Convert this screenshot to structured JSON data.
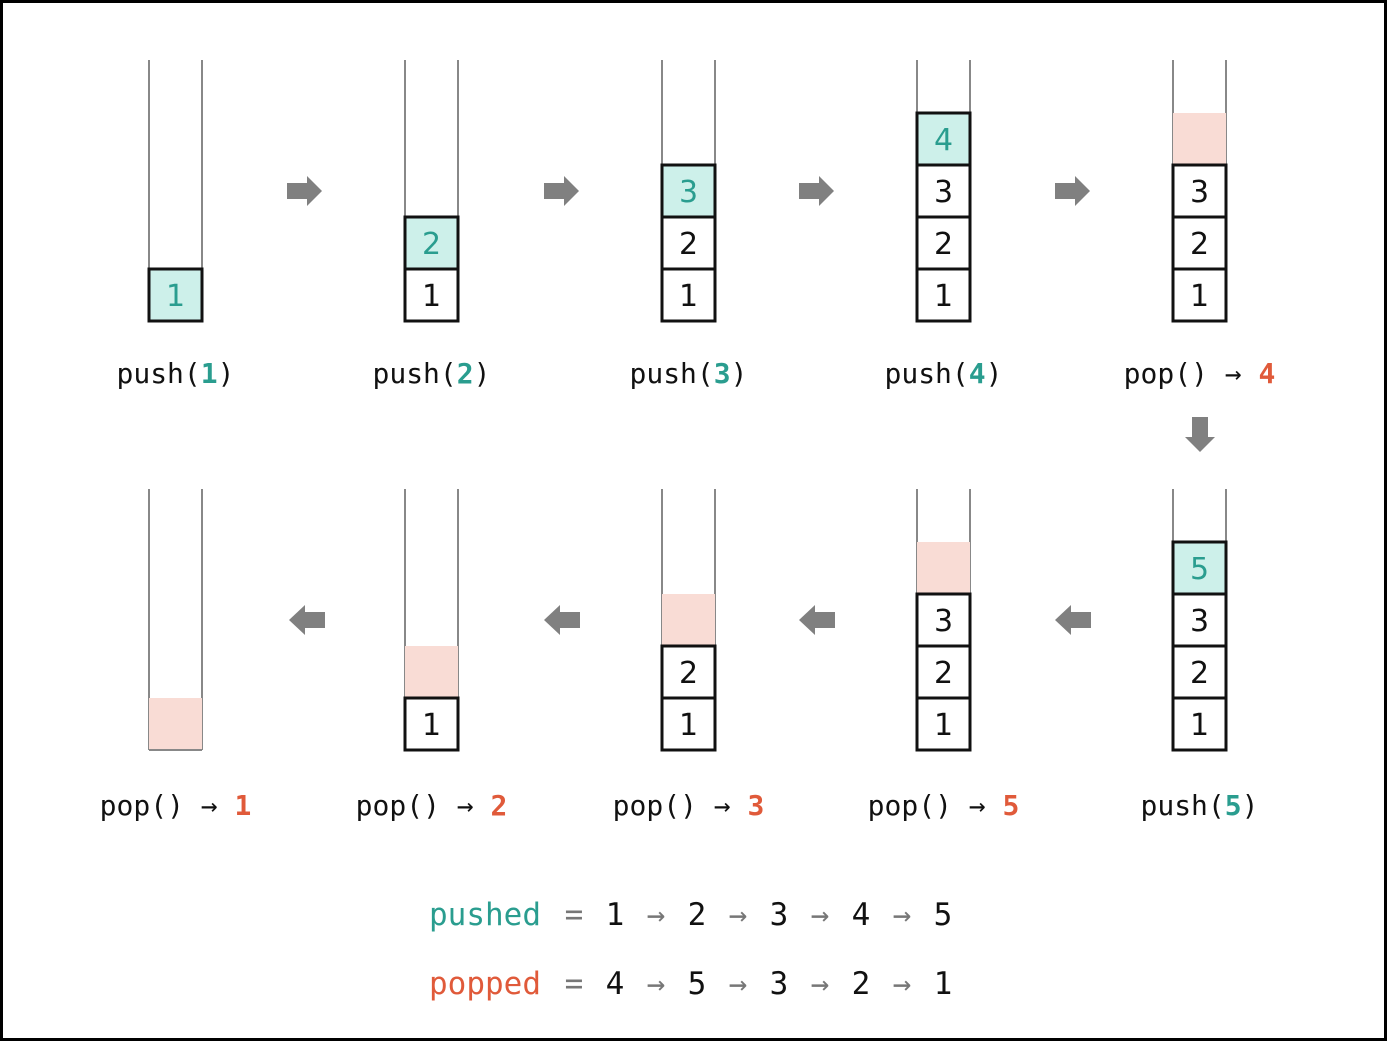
{
  "colors": {
    "push": "#2a9d8f",
    "pop": "#e05a3a",
    "new_cell": "#cdf0ea",
    "popped_cell": "#f9dcd5",
    "arrow": "#808080",
    "wall": "#888888"
  },
  "steps": [
    {
      "op": "push",
      "arg": "1",
      "stack": [
        "1"
      ],
      "highlight": "top"
    },
    {
      "op": "push",
      "arg": "2",
      "stack": [
        "1",
        "2"
      ],
      "highlight": "top"
    },
    {
      "op": "push",
      "arg": "3",
      "stack": [
        "1",
        "2",
        "3"
      ],
      "highlight": "top"
    },
    {
      "op": "push",
      "arg": "4",
      "stack": [
        "1",
        "2",
        "3",
        "4"
      ],
      "highlight": "top"
    },
    {
      "op": "pop",
      "result": "4",
      "stack": [
        "1",
        "2",
        "3"
      ],
      "highlight": "ghost"
    },
    {
      "op": "push",
      "arg": "5",
      "stack": [
        "1",
        "2",
        "3",
        "5"
      ],
      "highlight": "top"
    },
    {
      "op": "pop",
      "result": "5",
      "stack": [
        "1",
        "2",
        "3"
      ],
      "highlight": "ghost"
    },
    {
      "op": "pop",
      "result": "3",
      "stack": [
        "1",
        "2"
      ],
      "highlight": "ghost"
    },
    {
      "op": "pop",
      "result": "2",
      "stack": [
        "1"
      ],
      "highlight": "ghost"
    },
    {
      "op": "pop",
      "result": "1",
      "stack": [],
      "highlight": "ghost"
    }
  ],
  "summary": {
    "pushed_label": "pushed",
    "popped_label": "popped",
    "equals": "=",
    "pushed_sequence": [
      "1",
      "2",
      "3",
      "4",
      "5"
    ],
    "popped_sequence": [
      "4",
      "5",
      "3",
      "2",
      "1"
    ]
  }
}
